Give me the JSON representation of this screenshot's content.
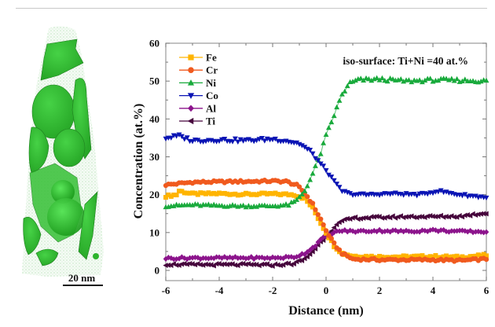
{
  "figure": {
    "scale_bar_label": "20 nm",
    "tomography_description": "3D atom map reconstruction with green iso-surfaces"
  },
  "chart_data": {
    "type": "line",
    "title": "",
    "annotation": "iso-surface: Ti+Ni =40 at.%",
    "xlabel": "Distance (nm)",
    "ylabel": "Concentration (at.%)",
    "xlim": [
      -6,
      6
    ],
    "ylim": [
      -2.7,
      60
    ],
    "xticks": [
      -6,
      -4,
      -2,
      0,
      2,
      4,
      6
    ],
    "yticks": [
      0,
      10,
      20,
      30,
      40,
      50,
      60
    ],
    "grid": false,
    "legend_position": "top-left",
    "series": [
      {
        "name": "Fe",
        "color": "#ffb400",
        "marker": "square",
        "profile": [
          [
            -6,
            19.6
          ],
          [
            -5.6,
            20.0
          ],
          [
            -5.5,
            21.0
          ],
          [
            -5,
            20.2
          ],
          [
            -4,
            20.3
          ],
          [
            -3,
            20.1
          ],
          [
            -2,
            20.2
          ],
          [
            -1.2,
            20.0
          ],
          [
            -0.8,
            19.0
          ],
          [
            -0.5,
            16.5
          ],
          [
            -0.2,
            12.5
          ],
          [
            0,
            10.0
          ],
          [
            0.3,
            6.5
          ],
          [
            0.6,
            4.5
          ],
          [
            1,
            3.8
          ],
          [
            2,
            3.6
          ],
          [
            3,
            3.6
          ],
          [
            4,
            3.7
          ],
          [
            5,
            3.5
          ],
          [
            6,
            4.0
          ]
        ]
      },
      {
        "name": "Cr",
        "color": "#f05a1e",
        "marker": "circle",
        "profile": [
          [
            -6,
            22.6
          ],
          [
            -5,
            23.3
          ],
          [
            -4,
            23.4
          ],
          [
            -3,
            23.5
          ],
          [
            -2,
            23.6
          ],
          [
            -1.5,
            23.5
          ],
          [
            -1.1,
            22.5
          ],
          [
            -0.8,
            20.5
          ],
          [
            -0.5,
            17.5
          ],
          [
            -0.2,
            13.5
          ],
          [
            0,
            10.5
          ],
          [
            0.3,
            7.0
          ],
          [
            0.6,
            4.5
          ],
          [
            1,
            3.0
          ],
          [
            2,
            2.8
          ],
          [
            3,
            2.8
          ],
          [
            4,
            2.8
          ],
          [
            5,
            2.6
          ],
          [
            6,
            3.0
          ]
        ]
      },
      {
        "name": "Ni",
        "color": "#19aa3c",
        "marker": "triangle-up",
        "profile": [
          [
            -6,
            17.0
          ],
          [
            -5,
            17.3
          ],
          [
            -4,
            17.1
          ],
          [
            -3,
            17.0
          ],
          [
            -2,
            17.0
          ],
          [
            -1.4,
            17.3
          ],
          [
            -1.1,
            18.5
          ],
          [
            -0.8,
            21.0
          ],
          [
            -0.5,
            25.5
          ],
          [
            -0.2,
            31.0
          ],
          [
            0,
            35.5
          ],
          [
            0.3,
            41.0
          ],
          [
            0.6,
            46.5
          ],
          [
            0.9,
            49.5
          ],
          [
            1.2,
            50.3
          ],
          [
            2,
            50.5
          ],
          [
            3,
            50.0
          ],
          [
            4,
            50.3
          ],
          [
            5,
            50.2
          ],
          [
            6,
            50.0
          ]
        ]
      },
      {
        "name": "Co",
        "color": "#0a14b4",
        "marker": "triangle-down",
        "profile": [
          [
            -6,
            35.0
          ],
          [
            -5.5,
            35.5
          ],
          [
            -5,
            34.3
          ],
          [
            -4,
            34.5
          ],
          [
            -3,
            34.3
          ],
          [
            -2,
            34.7
          ],
          [
            -1.5,
            34.3
          ],
          [
            -1,
            33.5
          ],
          [
            -0.6,
            31.5
          ],
          [
            -0.3,
            29.0
          ],
          [
            0,
            26.5
          ],
          [
            0.3,
            23.5
          ],
          [
            0.6,
            21.0
          ],
          [
            0.9,
            20.2
          ],
          [
            1.5,
            20.0
          ],
          [
            2.5,
            20.3
          ],
          [
            3.5,
            20.0
          ],
          [
            4.2,
            21.0
          ],
          [
            5,
            20.0
          ],
          [
            6,
            19.3
          ]
        ]
      },
      {
        "name": "Al",
        "color": "#8c148c",
        "marker": "diamond",
        "profile": [
          [
            -6,
            3.2
          ],
          [
            -5,
            3.3
          ],
          [
            -4,
            3.3
          ],
          [
            -3,
            3.3
          ],
          [
            -2,
            3.3
          ],
          [
            -1.2,
            3.5
          ],
          [
            -0.8,
            4.5
          ],
          [
            -0.5,
            6.0
          ],
          [
            -0.2,
            8.0
          ],
          [
            0,
            9.0
          ],
          [
            0.3,
            10.0
          ],
          [
            0.6,
            10.5
          ],
          [
            1,
            10.3
          ],
          [
            2,
            10.5
          ],
          [
            3,
            10.3
          ],
          [
            4,
            10.6
          ],
          [
            5,
            10.3
          ],
          [
            6,
            10.2
          ]
        ]
      },
      {
        "name": "Ti",
        "color": "#46053c",
        "marker": "triangle-left",
        "profile": [
          [
            -6,
            1.6
          ],
          [
            -5,
            1.5
          ],
          [
            -4,
            1.5
          ],
          [
            -3,
            1.5
          ],
          [
            -2,
            1.4
          ],
          [
            -1.2,
            1.8
          ],
          [
            -0.8,
            3.0
          ],
          [
            -0.5,
            5.0
          ],
          [
            -0.2,
            7.5
          ],
          [
            0,
            9.0
          ],
          [
            0.3,
            11.5
          ],
          [
            0.6,
            13.0
          ],
          [
            1,
            13.8
          ],
          [
            2,
            14.0
          ],
          [
            3,
            14.2
          ],
          [
            4,
            14.2
          ],
          [
            5,
            14.3
          ],
          [
            6,
            15.2
          ]
        ]
      }
    ]
  }
}
